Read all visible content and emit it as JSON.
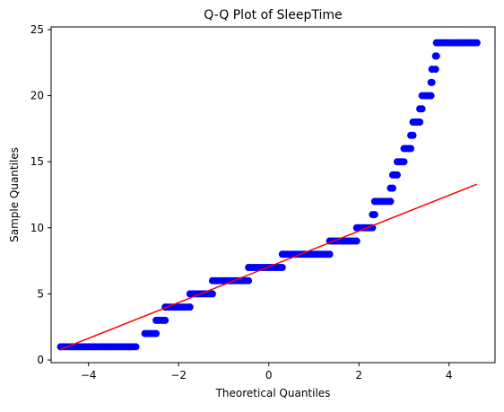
{
  "chart_data": {
    "type": "scatter",
    "title": "Q-Q Plot of SleepTime",
    "xlabel": "Theoretical Quantiles",
    "ylabel": "Sample Quantiles",
    "xlim": [
      -4.83,
      5.02
    ],
    "ylim": [
      -0.2,
      25.2
    ],
    "x_ticks": [
      -4,
      -2,
      0,
      2,
      4
    ],
    "x_tick_labels": [
      "−4",
      "−2",
      "0",
      "2",
      "4"
    ],
    "y_ticks": [
      0,
      5,
      10,
      15,
      20,
      25
    ],
    "y_tick_labels": [
      "0",
      "5",
      "10",
      "15",
      "20",
      "25"
    ],
    "grid": false,
    "series": [
      {
        "name": "Sample Quantiles",
        "kind": "points",
        "color": "#0000ff",
        "segments": [
          {
            "y": 1,
            "x_start": -4.62,
            "x_end": -2.95
          },
          {
            "y": 2,
            "x_start": -2.75,
            "x_end": -2.5
          },
          {
            "y": 3,
            "x_start": -2.5,
            "x_end": -2.3
          },
          {
            "y": 4,
            "x_start": -2.3,
            "x_end": -1.75
          },
          {
            "y": 5,
            "x_start": -1.75,
            "x_end": -1.25
          },
          {
            "y": 6,
            "x_start": -1.25,
            "x_end": -0.45
          },
          {
            "y": 7,
            "x_start": -0.45,
            "x_end": 0.3
          },
          {
            "y": 8,
            "x_start": 0.3,
            "x_end": 1.35
          },
          {
            "y": 9,
            "x_start": 1.35,
            "x_end": 1.95
          },
          {
            "y": 10,
            "x_start": 1.95,
            "x_end": 2.3
          },
          {
            "y": 11,
            "x_start": 2.3,
            "x_end": 2.35
          },
          {
            "y": 12,
            "x_start": 2.35,
            "x_end": 2.7
          },
          {
            "y": 13,
            "x_start": 2.7,
            "x_end": 2.75
          },
          {
            "y": 14,
            "x_start": 2.75,
            "x_end": 2.85
          },
          {
            "y": 15,
            "x_start": 2.85,
            "x_end": 3.0
          },
          {
            "y": 16,
            "x_start": 3.0,
            "x_end": 3.15
          },
          {
            "y": 17,
            "x_start": 3.15,
            "x_end": 3.2
          },
          {
            "y": 18,
            "x_start": 3.2,
            "x_end": 3.35
          },
          {
            "y": 19,
            "x_start": 3.35,
            "x_end": 3.4
          },
          {
            "y": 20,
            "x_start": 3.4,
            "x_end": 3.6
          },
          {
            "y": 21,
            "x_start": 3.6,
            "x_end": 3.62
          },
          {
            "y": 22,
            "x_start": 3.62,
            "x_end": 3.7
          },
          {
            "y": 23,
            "x_start": 3.7,
            "x_end": 3.72
          },
          {
            "y": 24,
            "x_start": 3.72,
            "x_end": 4.62
          }
        ]
      },
      {
        "name": "Reference Line",
        "kind": "line",
        "color": "#ff0000",
        "x": [
          -4.62,
          4.62
        ],
        "y": [
          0.8,
          13.3
        ]
      }
    ]
  }
}
